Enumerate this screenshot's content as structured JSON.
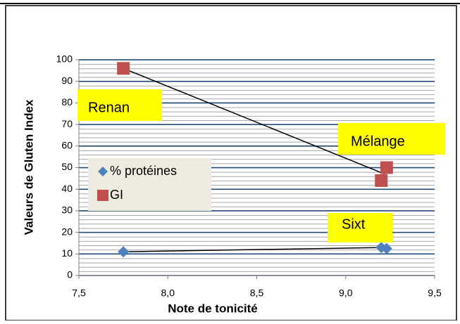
{
  "chart_data": {
    "type": "scatter",
    "x_label": "Note de tonicité",
    "y_label": "Valeurs de Gluten Index",
    "series": [
      {
        "name": "% protéines",
        "color": "#4f81bd",
        "marker": "diamond",
        "x": [
          7.75,
          9.2,
          9.23
        ],
        "values": [
          11,
          13,
          12.5
        ]
      },
      {
        "name": "GI",
        "color": "#c0504d",
        "marker": "square",
        "x": [
          7.75,
          9.2,
          9.23
        ],
        "values": [
          96,
          44,
          50
        ]
      }
    ],
    "lines": [
      {
        "color": "#000000",
        "x": [
          7.75,
          9.22
        ],
        "values": [
          96,
          47
        ]
      },
      {
        "color": "#000000",
        "x": [
          7.75,
          9.22
        ],
        "values": [
          11,
          13
        ]
      }
    ],
    "annotations": [
      "Renan",
      "Mélange",
      "Sixt"
    ],
    "xlim": [
      7.5,
      9.5
    ],
    "xticks": [
      {
        "value": 7.5,
        "label": "7,5"
      },
      {
        "value": 8.0,
        "label": "8,0"
      },
      {
        "value": 8.5,
        "label": "8,5"
      },
      {
        "value": 9.0,
        "label": "9,0"
      },
      {
        "value": 9.5,
        "label": "9,5"
      }
    ],
    "ylim": [
      0,
      100
    ],
    "yticks": [
      0,
      10,
      20,
      30,
      40,
      50,
      60,
      70,
      80,
      90,
      100
    ],
    "grid": true
  }
}
